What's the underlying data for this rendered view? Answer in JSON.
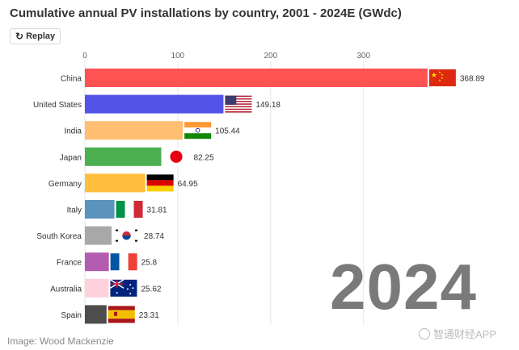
{
  "header": {
    "title": "Cumulative annual PV installations by country, 2001 - 2024E (GWdc)",
    "replay_label": "Replay"
  },
  "overlay": {
    "year": "2024"
  },
  "footer": {
    "credit": "Image: Wood Mackenzie",
    "watermark": "智通财经APP"
  },
  "chart_data": {
    "type": "bar",
    "orientation": "horizontal",
    "title": "Cumulative annual PV installations by country, 2001 - 2024E (GWdc)",
    "xlim": [
      0,
      369
    ],
    "xticks": [
      0,
      100,
      200,
      300
    ],
    "grid": true,
    "categories": [
      "China",
      "United States",
      "India",
      "Japan",
      "Germany",
      "Italy",
      "South Korea",
      "France",
      "Australia",
      "Spain"
    ],
    "values": [
      368.89,
      149.18,
      105.44,
      82.25,
      64.95,
      31.81,
      28.74,
      25.8,
      25.62,
      23.31
    ],
    "value_labels": [
      "368.89",
      "149.18",
      "105.44",
      "82.25",
      "64.95",
      "31.81",
      "28.74",
      "25.8",
      "25.62",
      "23.31"
    ],
    "colors": [
      "#ff5252",
      "#5353e8",
      "#ffbe72",
      "#4caf50",
      "#ffbe3d",
      "#5a93bc",
      "#a8a8a8",
      "#b35cb0",
      "#ffd1dc",
      "#4d4d4d"
    ],
    "flags": [
      "china-flag",
      "usa-flag",
      "india-flag",
      "japan-flag",
      "germany-flag",
      "italy-flag",
      "south-korea-flag",
      "france-flag",
      "australia-flag",
      "spain-flag"
    ]
  }
}
